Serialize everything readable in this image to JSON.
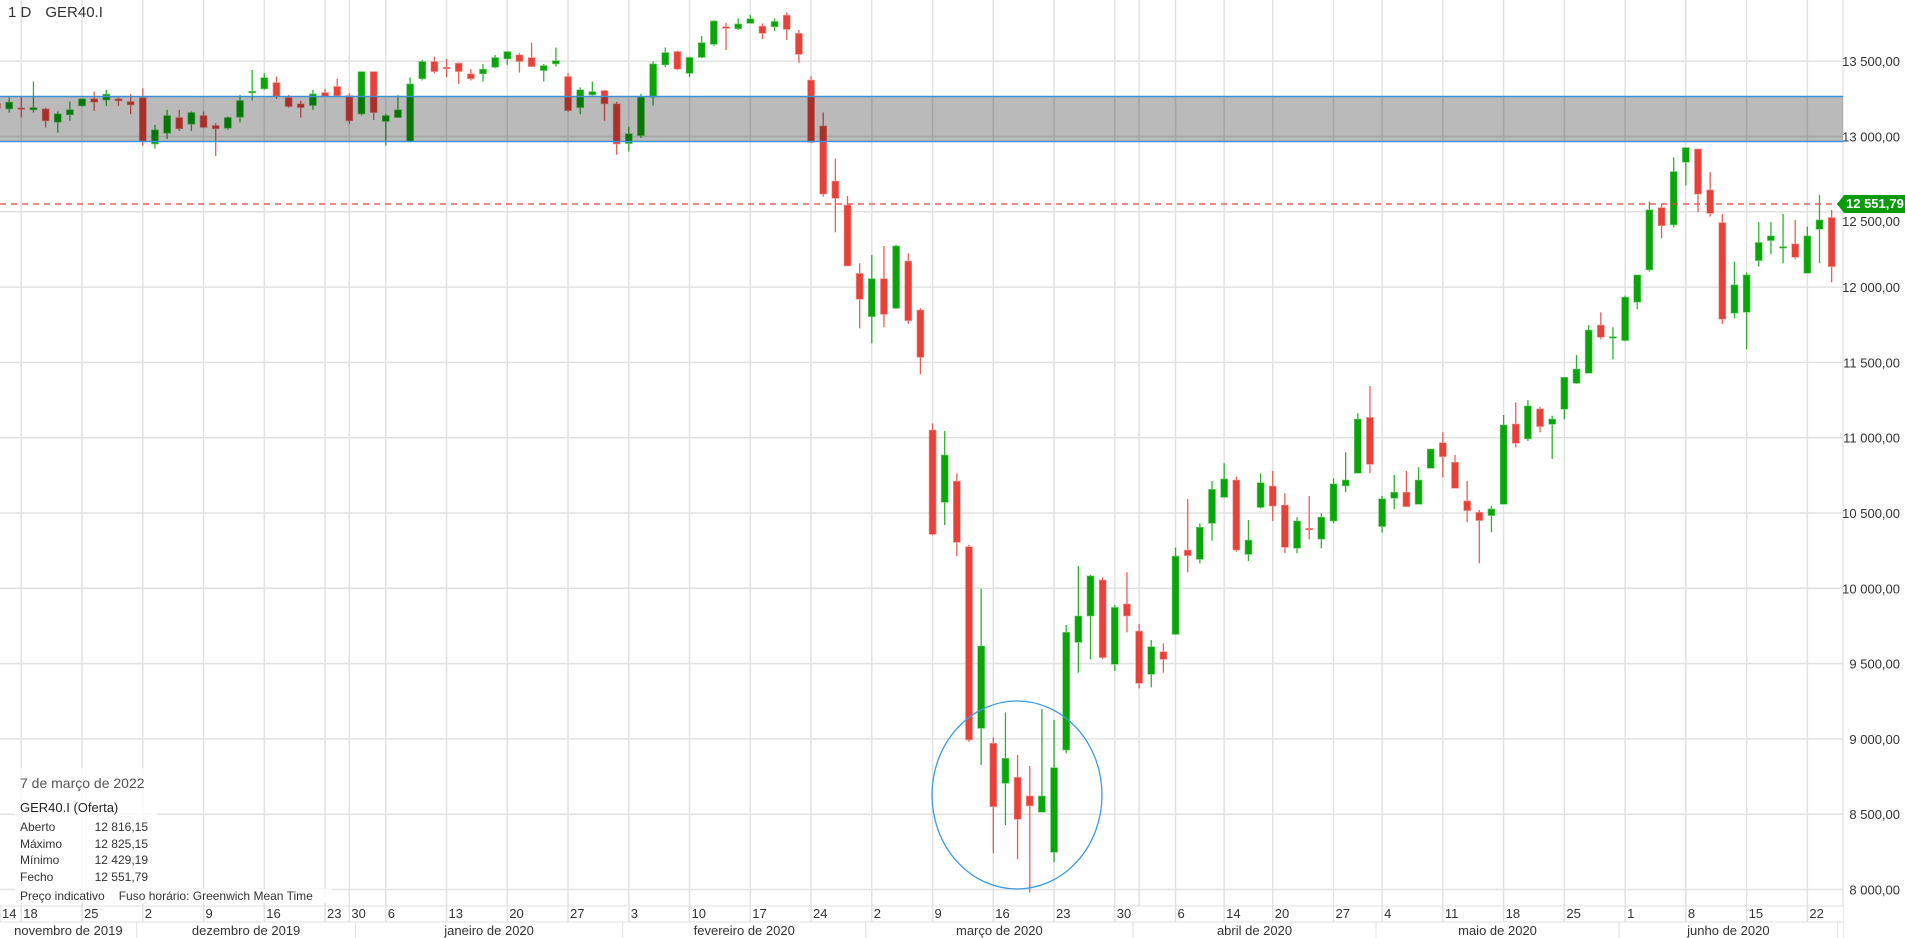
{
  "header": {
    "interval": "1 D",
    "symbol": "GER40.I"
  },
  "info_box": {
    "date": "7 de março de 2022",
    "instrument": "GER40.I (Oferta)",
    "rows": [
      {
        "label": "Aberto",
        "value": "12 816,15"
      },
      {
        "label": "Máximo",
        "value": "12 825,15"
      },
      {
        "label": "Mínimo",
        "value": "12 429,19"
      },
      {
        "label": "Fecho",
        "value": "12 551,79"
      }
    ]
  },
  "footer_note": {
    "indicative": "Preço indicativo",
    "timezone": "Fuso horário: Greenwich Mean Time"
  },
  "current_price": {
    "value": 12551.79,
    "label": "12 551,79",
    "color": "#0a9a0a",
    "line_color": "#e8413a"
  },
  "colors": {
    "up": "#0aa50a",
    "down": "#e8413a",
    "grid": "#e2e2e2",
    "zone_fill": "#000000",
    "zone_line": "#3d8fd6",
    "annotation": "#3d9be0"
  },
  "chart_data": {
    "type": "candlestick",
    "ylim": [
      7950,
      13900
    ],
    "grid": true,
    "y_ticks": [
      {
        "value": 8000,
        "label": "8 000,00"
      },
      {
        "value": 8500,
        "label": "8 500,00"
      },
      {
        "value": 9000,
        "label": "9 000,00"
      },
      {
        "value": 9500,
        "label": "9 500,00"
      },
      {
        "value": 10000,
        "label": "10 000,00"
      },
      {
        "value": 10500,
        "label": "10 500,00"
      },
      {
        "value": 11000,
        "label": "11 000,00"
      },
      {
        "value": 11500,
        "label": "11 500,00"
      },
      {
        "value": 12000,
        "label": "12 000,00"
      },
      {
        "value": 12500,
        "label": "12 500,00"
      },
      {
        "value": 13000,
        "label": "13 000,00"
      },
      {
        "value": 13500,
        "label": "13 500,00"
      }
    ],
    "x_ticks": [
      {
        "label": "14",
        "date": "2019-11-14"
      },
      {
        "label": "18",
        "date": "2019-11-18"
      },
      {
        "label": "25",
        "date": "2019-11-25"
      },
      {
        "label": "2",
        "date": "2019-12-02"
      },
      {
        "label": "9",
        "date": "2019-12-09"
      },
      {
        "label": "16",
        "date": "2019-12-16"
      },
      {
        "label": "23",
        "date": "2019-12-23"
      },
      {
        "label": "30",
        "date": "2019-12-30"
      },
      {
        "label": "6",
        "date": "2020-01-06"
      },
      {
        "label": "13",
        "date": "2020-01-13"
      },
      {
        "label": "20",
        "date": "2020-01-20"
      },
      {
        "label": "27",
        "date": "2020-01-27"
      },
      {
        "label": "3",
        "date": "2020-02-03"
      },
      {
        "label": "10",
        "date": "2020-02-10"
      },
      {
        "label": "17",
        "date": "2020-02-17"
      },
      {
        "label": "24",
        "date": "2020-02-24"
      },
      {
        "label": "2",
        "date": "2020-03-02"
      },
      {
        "label": "9",
        "date": "2020-03-09"
      },
      {
        "label": "16",
        "date": "2020-03-16"
      },
      {
        "label": "23",
        "date": "2020-03-23"
      },
      {
        "label": "30",
        "date": "2020-03-30"
      },
      {
        "label": "6",
        "date": "2020-04-06"
      },
      {
        "label": "14",
        "date": "2020-04-14"
      },
      {
        "label": "20",
        "date": "2020-04-20"
      },
      {
        "label": "27",
        "date": "2020-04-27"
      },
      {
        "label": "4",
        "date": "2020-05-04"
      },
      {
        "label": "11",
        "date": "2020-05-11"
      },
      {
        "label": "18",
        "date": "2020-05-18"
      },
      {
        "label": "25",
        "date": "2020-05-25"
      },
      {
        "label": "1",
        "date": "2020-06-01"
      },
      {
        "label": "8",
        "date": "2020-06-08"
      },
      {
        "label": "15",
        "date": "2020-06-15"
      },
      {
        "label": "22",
        "date": "2020-06-22"
      }
    ],
    "months": [
      {
        "label": "novembro de 2019",
        "month": "2019-11"
      },
      {
        "label": "dezembro de 2019",
        "month": "2019-12"
      },
      {
        "label": "janeiro de 2020",
        "month": "2020-01"
      },
      {
        "label": "fevereiro de 2020",
        "month": "2020-02"
      },
      {
        "label": "março de 2020",
        "month": "2020-03"
      },
      {
        "label": "abril de 2020",
        "month": "2020-04"
      },
      {
        "label": "maio de 2020",
        "month": "2020-05"
      },
      {
        "label": "junho de 2020",
        "month": "2020-06"
      }
    ],
    "zone": {
      "top": 13266,
      "bottom": 12967
    },
    "columns": [
      "date",
      "open",
      "high",
      "low",
      "close"
    ],
    "candles": [
      [
        "2019-11-14",
        13221,
        13230,
        13180,
        13188
      ],
      [
        "2019-11-15",
        13183,
        13259,
        13159,
        13228
      ],
      [
        "2019-11-18",
        13190,
        13265,
        13126,
        13186
      ],
      [
        "2019-11-19",
        13177,
        13365,
        13159,
        13192
      ],
      [
        "2019-11-20",
        13183,
        13192,
        13060,
        13104
      ],
      [
        "2019-11-21",
        13095,
        13166,
        13026,
        13150
      ],
      [
        "2019-11-22",
        13144,
        13232,
        13104,
        13177
      ],
      [
        "2019-11-25",
        13203,
        13254,
        13199,
        13250
      ],
      [
        "2019-11-26",
        13250,
        13298,
        13170,
        13228
      ],
      [
        "2019-11-27",
        13243,
        13310,
        13203,
        13281
      ],
      [
        "2019-11-28",
        13250,
        13259,
        13203,
        13237
      ],
      [
        "2019-11-29",
        13232,
        13283,
        13148,
        13210
      ],
      [
        "2019-12-02",
        13258,
        13320,
        12940,
        12967
      ],
      [
        "2019-12-03",
        12950,
        13077,
        12920,
        13044
      ],
      [
        "2019-12-04",
        13022,
        13177,
        12984,
        13139
      ],
      [
        "2019-12-05",
        13126,
        13177,
        13037,
        13051
      ],
      [
        "2019-12-06",
        13082,
        13166,
        13037,
        13159
      ],
      [
        "2019-12-09",
        13139,
        13166,
        13055,
        13060
      ],
      [
        "2019-12-10",
        13073,
        13088,
        12870,
        13051
      ],
      [
        "2019-12-11",
        13055,
        13133,
        13044,
        13126
      ],
      [
        "2019-12-12",
        13128,
        13276,
        13093,
        13239
      ],
      [
        "2019-12-13",
        13290,
        13442,
        13239,
        13300
      ],
      [
        "2019-12-16",
        13316,
        13420,
        13310,
        13391
      ],
      [
        "2019-12-17",
        13358,
        13398,
        13250,
        13265
      ],
      [
        "2019-12-18",
        13259,
        13276,
        13192,
        13199
      ],
      [
        "2019-12-19",
        13217,
        13239,
        13126,
        13192
      ],
      [
        "2019-12-20",
        13206,
        13310,
        13177,
        13283
      ],
      [
        "2019-12-23",
        13292,
        13316,
        13265,
        13265
      ],
      [
        "2019-12-27",
        13332,
        13383,
        13265,
        13270
      ],
      [
        "2019-12-30",
        13272,
        13287,
        13082,
        13104
      ],
      [
        "2020-01-02",
        13150,
        13431,
        13140,
        13431
      ],
      [
        "2020-01-03",
        13431,
        13431,
        13110,
        13159
      ],
      [
        "2020-01-06",
        13100,
        13150,
        12940,
        13139
      ],
      [
        "2020-01-07",
        13126,
        13276,
        13126,
        13177
      ],
      [
        "2020-01-08",
        12967,
        13391,
        12960,
        13349
      ],
      [
        "2020-01-09",
        13383,
        13509,
        13372,
        13498
      ],
      [
        "2020-01-10",
        13498,
        13531,
        13420,
        13431
      ],
      [
        "2020-01-13",
        13460,
        13515,
        13394,
        13453
      ],
      [
        "2020-01-14",
        13487,
        13491,
        13349,
        13431
      ],
      [
        "2020-01-15",
        13416,
        13447,
        13372,
        13383
      ],
      [
        "2020-01-16",
        13416,
        13482,
        13365,
        13447
      ],
      [
        "2020-01-17",
        13460,
        13542,
        13453,
        13524
      ],
      [
        "2020-01-20",
        13515,
        13564,
        13476,
        13564
      ],
      [
        "2020-01-21",
        13542,
        13553,
        13425,
        13498
      ],
      [
        "2020-01-22",
        13524,
        13624,
        13464,
        13464
      ],
      [
        "2020-01-23",
        13438,
        13482,
        13365,
        13471
      ],
      [
        "2020-01-24",
        13482,
        13591,
        13464,
        13504
      ],
      [
        "2020-01-27",
        13398,
        13420,
        13165,
        13172
      ],
      [
        "2020-01-28",
        13192,
        13327,
        13148,
        13310
      ],
      [
        "2020-01-29",
        13276,
        13365,
        13270,
        13298
      ],
      [
        "2020-01-30",
        13305,
        13310,
        13104,
        13217
      ],
      [
        "2020-01-31",
        13217,
        13230,
        12880,
        12950
      ],
      [
        "2020-02-03",
        12953,
        13065,
        12900,
        13018
      ],
      [
        "2020-02-04",
        13006,
        13283,
        12990,
        13261
      ],
      [
        "2020-02-05",
        13261,
        13498,
        13206,
        13482
      ],
      [
        "2020-02-06",
        13476,
        13591,
        13460,
        13557
      ],
      [
        "2020-02-07",
        13564,
        13570,
        13440,
        13447
      ],
      [
        "2020-02-10",
        13419,
        13530,
        13395,
        13525
      ],
      [
        "2020-02-11",
        13525,
        13667,
        13520,
        13623
      ],
      [
        "2020-02-12",
        13612,
        13772,
        13600,
        13767
      ],
      [
        "2020-02-13",
        13729,
        13755,
        13574,
        13718
      ],
      [
        "2020-02-14",
        13716,
        13784,
        13707,
        13747
      ],
      [
        "2020-02-17",
        13751,
        13806,
        13751,
        13782
      ],
      [
        "2020-02-18",
        13733,
        13751,
        13647,
        13685
      ],
      [
        "2020-02-19",
        13729,
        13784,
        13700,
        13764
      ],
      [
        "2020-02-20",
        13806,
        13824,
        13640,
        13711
      ],
      [
        "2020-02-21",
        13685,
        13707,
        13490,
        13545
      ],
      [
        "2020-02-24",
        13375,
        13400,
        12955,
        12961
      ],
      [
        "2020-02-25",
        13070,
        13160,
        12600,
        12618
      ],
      [
        "2020-02-26",
        12704,
        12853,
        12364,
        12589
      ],
      [
        "2020-02-27",
        12545,
        12605,
        12140,
        12140
      ],
      [
        "2020-02-28",
        12091,
        12158,
        11726,
        11919
      ],
      [
        "2020-03-02",
        11804,
        12213,
        11627,
        12056
      ],
      [
        "2020-03-03",
        12056,
        12273,
        11733,
        11819
      ],
      [
        "2020-03-04",
        11859,
        12280,
        11855,
        12273
      ],
      [
        "2020-03-05",
        12173,
        12224,
        11755,
        11777
      ],
      [
        "2020-03-06",
        11848,
        11860,
        11421,
        11534
      ],
      [
        "2020-03-09",
        11051,
        11095,
        10350,
        10358
      ],
      [
        "2020-03-10",
        10571,
        11044,
        10420,
        10885
      ],
      [
        "2020-03-11",
        10712,
        10763,
        10214,
        10305
      ],
      [
        "2020-03-12",
        10276,
        10290,
        8980,
        8993
      ],
      [
        "2020-03-13",
        9070,
        9999,
        8827,
        9617
      ],
      [
        "2020-03-16",
        8971,
        9010,
        8240,
        8550
      ],
      [
        "2020-03-17",
        8705,
        9176,
        8428,
        8871
      ],
      [
        "2020-03-18",
        8745,
        8893,
        8200,
        8466
      ],
      [
        "2020-03-19",
        8621,
        8820,
        7979,
        8555
      ],
      [
        "2020-03-20",
        8513,
        9199,
        8513,
        8621
      ],
      [
        "2020-03-23",
        8247,
        9126,
        8181,
        8809
      ],
      [
        "2020-03-24",
        8926,
        9756,
        8904,
        9708
      ],
      [
        "2020-03-25",
        9641,
        10148,
        9440,
        9816
      ],
      [
        "2020-03-26",
        9816,
        10090,
        9528,
        10082
      ],
      [
        "2020-03-27",
        10055,
        10073,
        9530,
        9540
      ],
      [
        "2020-03-30",
        9495,
        9889,
        9451,
        9873
      ],
      [
        "2020-03-31",
        9896,
        10106,
        9707,
        9816
      ],
      [
        "2020-04-01",
        9716,
        9763,
        9336,
        9369
      ],
      [
        "2020-04-02",
        9429,
        9657,
        9342,
        9612
      ],
      [
        "2020-04-03",
        9579,
        9634,
        9440,
        9528
      ],
      [
        "2020-04-06",
        9694,
        10270,
        9690,
        10214
      ],
      [
        "2020-04-07",
        10254,
        10593,
        10106,
        10217
      ],
      [
        "2020-04-08",
        10192,
        10431,
        10166,
        10405
      ],
      [
        "2020-04-09",
        10431,
        10712,
        10316,
        10657
      ],
      [
        "2020-04-14",
        10604,
        10830,
        10600,
        10726
      ],
      [
        "2020-04-15",
        10719,
        10741,
        10243,
        10254
      ],
      [
        "2020-04-16",
        10225,
        10453,
        10181,
        10320
      ],
      [
        "2020-04-17",
        10537,
        10763,
        10530,
        10701
      ],
      [
        "2020-04-20",
        10679,
        10779,
        10447,
        10546
      ],
      [
        "2020-04-21",
        10553,
        10631,
        10233,
        10272
      ],
      [
        "2020-04-22",
        10266,
        10472,
        10233,
        10447
      ],
      [
        "2020-04-23",
        10398,
        10613,
        10326,
        10392
      ],
      [
        "2020-04-24",
        10326,
        10498,
        10266,
        10472
      ],
      [
        "2020-04-27",
        10447,
        10730,
        10432,
        10693
      ],
      [
        "2020-04-28",
        10680,
        10903,
        10638,
        10719
      ],
      [
        "2020-04-29",
        10764,
        11162,
        10764,
        11124
      ],
      [
        "2020-04-30",
        11135,
        11343,
        10764,
        10823
      ],
      [
        "2020-05-04",
        10410,
        10613,
        10370,
        10594
      ],
      [
        "2020-05-05",
        10598,
        10753,
        10525,
        10638
      ],
      [
        "2020-05-06",
        10638,
        10779,
        10542,
        10542
      ],
      [
        "2020-05-07",
        10558,
        10803,
        10558,
        10719
      ],
      [
        "2020-05-08",
        10797,
        10925,
        10797,
        10925
      ],
      [
        "2020-05-11",
        10967,
        11036,
        10737,
        10874
      ],
      [
        "2020-05-12",
        10837,
        10885,
        10664,
        10664
      ],
      [
        "2020-05-13",
        10580,
        10713,
        10438,
        10516
      ],
      [
        "2020-05-14",
        10505,
        10520,
        10166,
        10450
      ],
      [
        "2020-05-15",
        10483,
        10547,
        10372,
        10527
      ],
      [
        "2020-05-18",
        10558,
        11151,
        10558,
        11085
      ],
      [
        "2020-05-19",
        11091,
        11235,
        10936,
        10963
      ],
      [
        "2020-05-20",
        10992,
        11251,
        10978,
        11211
      ],
      [
        "2020-05-21",
        11191,
        11206,
        11036,
        11074
      ],
      [
        "2020-05-22",
        11089,
        11146,
        10859,
        11124
      ],
      [
        "2020-05-25",
        11189,
        11401,
        11122,
        11401
      ],
      [
        "2020-05-26",
        11361,
        11549,
        11357,
        11456
      ],
      [
        "2020-05-27",
        11428,
        11748,
        11428,
        11715
      ],
      [
        "2020-05-28",
        11748,
        11833,
        11653,
        11667
      ],
      [
        "2020-05-29",
        11662,
        11733,
        11520,
        11671
      ],
      [
        "2020-06-01",
        11645,
        11943,
        11640,
        11933
      ],
      [
        "2020-06-02",
        11900,
        12081,
        11853,
        12081
      ],
      [
        "2020-06-03",
        12114,
        12568,
        12103,
        12513
      ],
      [
        "2020-06-04",
        12528,
        12550,
        12325,
        12408
      ],
      [
        "2020-06-05",
        12413,
        12862,
        12397,
        12767
      ],
      [
        "2020-06-08",
        12829,
        12926,
        12674,
        12926
      ],
      [
        "2020-06-09",
        12917,
        12917,
        12497,
        12617
      ],
      [
        "2020-06-10",
        12645,
        12763,
        12468,
        12490
      ],
      [
        "2020-06-11",
        12428,
        12484,
        11756,
        11787
      ],
      [
        "2020-06-12",
        11827,
        12170,
        11793,
        12015
      ],
      [
        "2020-06-15",
        11833,
        12097,
        11587,
        12081
      ],
      [
        "2020-06-16",
        12176,
        12431,
        12136,
        12296
      ],
      [
        "2020-06-17",
        12309,
        12431,
        12218,
        12340
      ],
      [
        "2020-06-18",
        12260,
        12486,
        12158,
        12269
      ],
      [
        "2020-06-19",
        12287,
        12446,
        12185,
        12198
      ],
      [
        "2020-06-22",
        12092,
        12402,
        12092,
        12340
      ],
      [
        "2020-06-23",
        12384,
        12612,
        12158,
        12446
      ],
      [
        "2020-06-24",
        12462,
        12512,
        12032,
        12136
      ]
    ]
  }
}
